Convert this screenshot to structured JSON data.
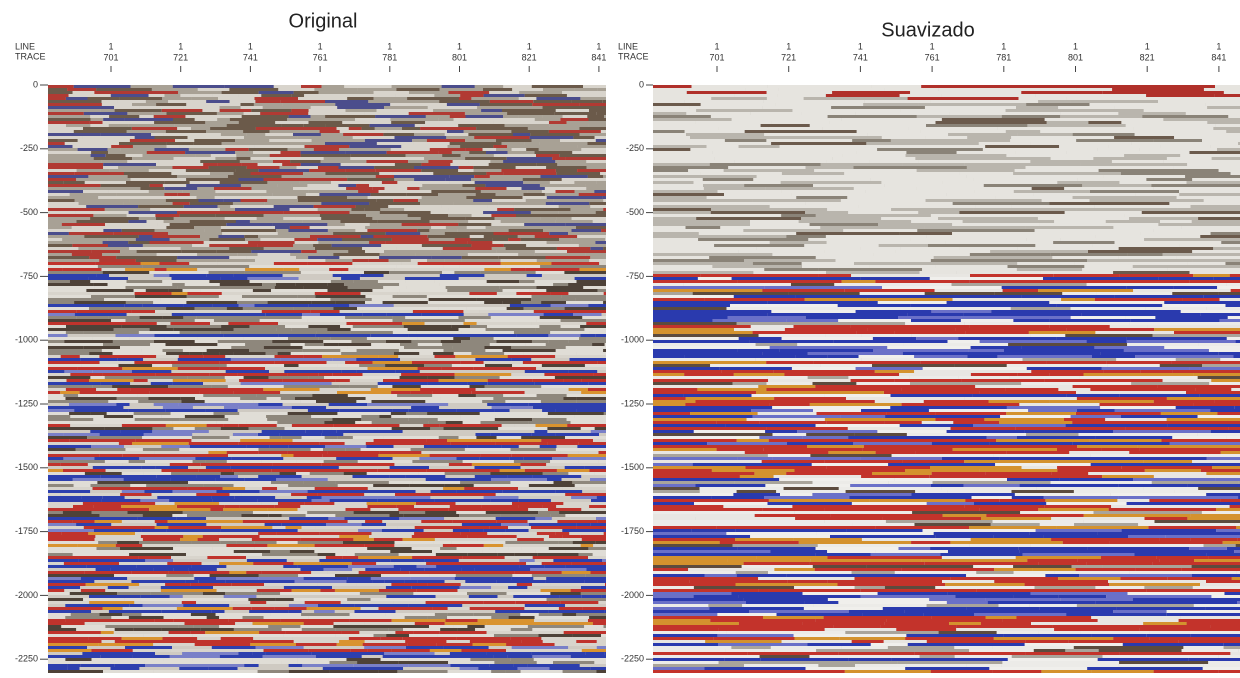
{
  "panels": [
    {
      "title": "Original",
      "header": [
        "LINE",
        "TRACE"
      ],
      "x_ticks": [
        {
          "line": "1",
          "trace": "701"
        },
        {
          "line": "1",
          "trace": "721"
        },
        {
          "line": "1",
          "trace": "741"
        },
        {
          "line": "1",
          "trace": "761"
        },
        {
          "line": "1",
          "trace": "781"
        },
        {
          "line": "1",
          "trace": "801"
        },
        {
          "line": "1",
          "trace": "821"
        },
        {
          "line": "1",
          "trace": "841"
        }
      ],
      "y_ticks": [
        "0",
        "-250",
        "-500",
        "-750",
        "-1000",
        "-1250",
        "-1500",
        "-1750",
        "-2000",
        "-2250"
      ]
    },
    {
      "title": "Suavizado",
      "header": [
        "LINE",
        "TRACE"
      ],
      "x_ticks": [
        {
          "line": "1",
          "trace": "701"
        },
        {
          "line": "1",
          "trace": "721"
        },
        {
          "line": "1",
          "trace": "741"
        },
        {
          "line": "1",
          "trace": "761"
        },
        {
          "line": "1",
          "trace": "781"
        },
        {
          "line": "1",
          "trace": "801"
        },
        {
          "line": "1",
          "trace": "821"
        },
        {
          "line": "1",
          "trace": "841"
        }
      ],
      "y_ticks": [
        "0",
        "-250",
        "-500",
        "-750",
        "-1000",
        "-1250",
        "-1500",
        "-1750",
        "-2000",
        "-2250"
      ]
    }
  ]
}
